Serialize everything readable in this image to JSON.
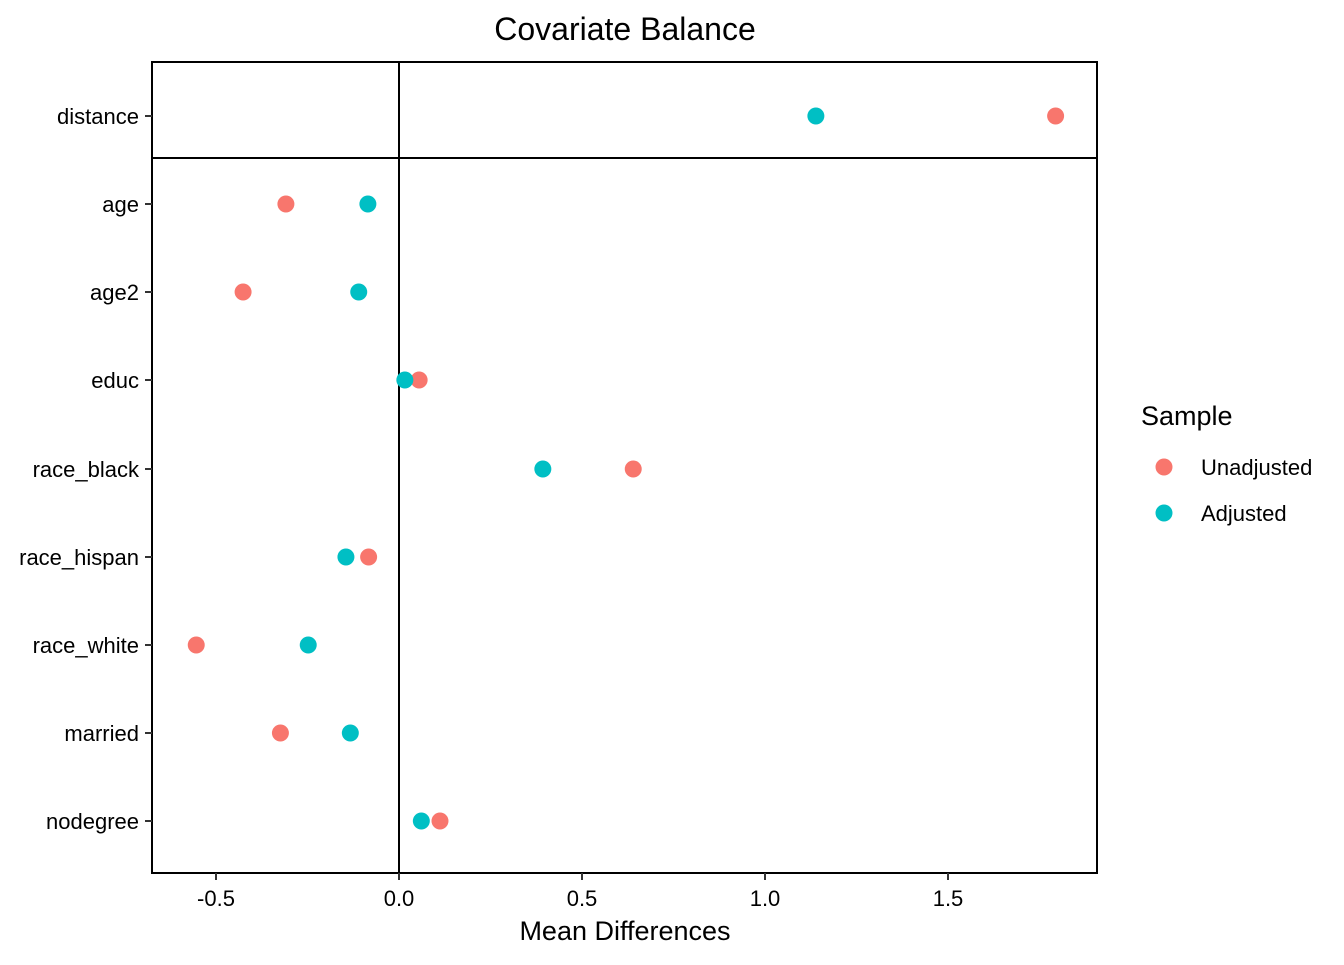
{
  "chart_data": {
    "type": "scatter",
    "title": "Covariate Balance",
    "xlabel": "Mean Differences",
    "ylabel": "",
    "xlim": [
      -0.67,
      1.91
    ],
    "x_ticks": [
      -0.5,
      0.0,
      0.5,
      1.0,
      1.5
    ],
    "x_tick_labels": [
      "-0.5",
      "0.0",
      "0.5",
      "1.0",
      "1.5"
    ],
    "reference_line_x": 0,
    "grid": false,
    "categories": [
      "distance",
      "age",
      "age2",
      "educ",
      "race_black",
      "race_hispan",
      "race_white",
      "married",
      "nodegree"
    ],
    "series": [
      {
        "name": "Unadjusted",
        "color": "#F8766D",
        "values": [
          1.794,
          -0.309,
          -0.426,
          0.055,
          0.64,
          -0.083,
          -0.554,
          -0.324,
          0.112
        ]
      },
      {
        "name": "Adjusted",
        "color": "#00BFC4",
        "values": [
          1.139,
          -0.085,
          -0.11,
          0.016,
          0.393,
          -0.145,
          -0.248,
          -0.133,
          0.061
        ]
      }
    ],
    "legend": {
      "title": "Sample",
      "position": "right"
    }
  }
}
